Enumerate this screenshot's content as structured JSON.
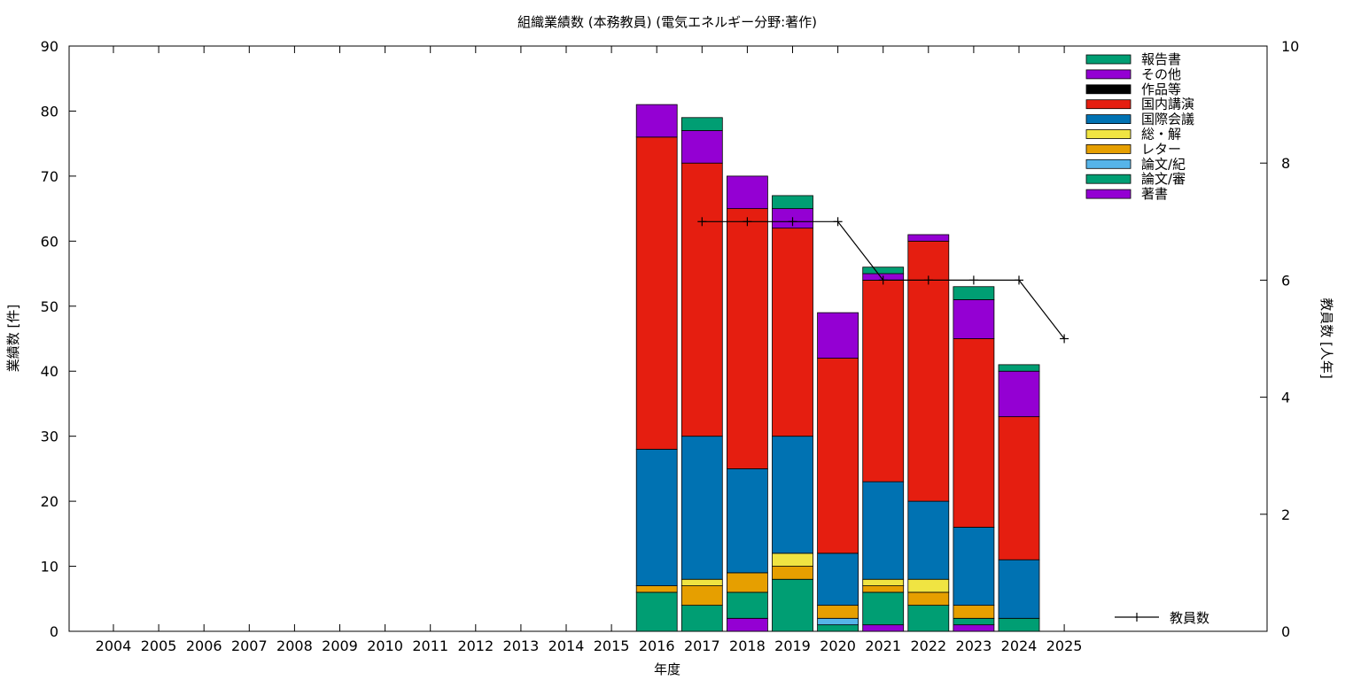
{
  "chart_data": {
    "type": "bar",
    "title": "組織業績数 (本務教員) (電気エネルギー分野:著作)",
    "xlabel": "年度",
    "ylabel": "業績数 [件]",
    "y2label": "教員数 [人年]",
    "ylim": [
      0,
      90
    ],
    "y2lim": [
      0,
      10
    ],
    "yticks": [
      0,
      10,
      20,
      30,
      40,
      50,
      60,
      70,
      80,
      90
    ],
    "y2ticks": [
      0,
      2,
      4,
      6,
      8,
      10
    ],
    "categories": [
      "2004",
      "2005",
      "2006",
      "2007",
      "2008",
      "2009",
      "2010",
      "2011",
      "2012",
      "2013",
      "2014",
      "2015",
      "2016",
      "2017",
      "2018",
      "2019",
      "2020",
      "2021",
      "2022",
      "2023",
      "2024",
      "2025"
    ],
    "stacked": true,
    "legend_position": "top-right",
    "series": [
      {
        "name": "著書",
        "color": "#9400d3",
        "values": [
          0,
          0,
          0,
          0,
          0,
          0,
          0,
          0,
          0,
          0,
          0,
          0,
          0,
          0,
          2,
          0,
          0,
          1,
          0,
          1,
          0,
          0
        ]
      },
      {
        "name": "論文/審",
        "color": "#009e73",
        "values": [
          0,
          0,
          0,
          0,
          0,
          0,
          0,
          0,
          0,
          0,
          0,
          0,
          6,
          4,
          4,
          8,
          1,
          5,
          4,
          1,
          2,
          0
        ]
      },
      {
        "name": "論文/紀",
        "color": "#56b4e9",
        "values": [
          0,
          0,
          0,
          0,
          0,
          0,
          0,
          0,
          0,
          0,
          0,
          0,
          0,
          0,
          0,
          0,
          1,
          0,
          0,
          0,
          0,
          0
        ]
      },
      {
        "name": "レター",
        "color": "#e69f00",
        "values": [
          0,
          0,
          0,
          0,
          0,
          0,
          0,
          0,
          0,
          0,
          0,
          0,
          1,
          3,
          3,
          2,
          2,
          1,
          2,
          2,
          0,
          0
        ]
      },
      {
        "name": "総・解",
        "color": "#f0e442",
        "values": [
          0,
          0,
          0,
          0,
          0,
          0,
          0,
          0,
          0,
          0,
          0,
          0,
          0,
          1,
          0,
          2,
          0,
          1,
          2,
          0,
          0,
          0
        ]
      },
      {
        "name": "国際会議",
        "color": "#0072b2",
        "values": [
          0,
          0,
          0,
          0,
          0,
          0,
          0,
          0,
          0,
          0,
          0,
          0,
          21,
          22,
          16,
          18,
          8,
          15,
          12,
          12,
          9,
          0
        ]
      },
      {
        "name": "国内講演",
        "color": "#e51e10",
        "values": [
          0,
          0,
          0,
          0,
          0,
          0,
          0,
          0,
          0,
          0,
          0,
          0,
          48,
          42,
          40,
          32,
          30,
          31,
          40,
          29,
          22,
          0
        ]
      },
      {
        "name": "作品等",
        "color": "#000000",
        "values": [
          0,
          0,
          0,
          0,
          0,
          0,
          0,
          0,
          0,
          0,
          0,
          0,
          0,
          0,
          0,
          0,
          0,
          0,
          0,
          0,
          0,
          0
        ]
      },
      {
        "name": "その他",
        "color": "#9400d3",
        "values": [
          0,
          0,
          0,
          0,
          0,
          0,
          0,
          0,
          0,
          0,
          0,
          0,
          5,
          5,
          5,
          3,
          7,
          1,
          1,
          6,
          7,
          0
        ]
      },
      {
        "name": "報告書",
        "color": "#009e73",
        "values": [
          0,
          0,
          0,
          0,
          0,
          0,
          0,
          0,
          0,
          0,
          0,
          0,
          0,
          2,
          0,
          2,
          0,
          1,
          0,
          2,
          1,
          0
        ]
      }
    ],
    "line_series": {
      "name": "教員数",
      "axis": "y2",
      "color": "#000000",
      "x": [
        "2017",
        "2018",
        "2019",
        "2020",
        "2021",
        "2022",
        "2023",
        "2024",
        "2025"
      ],
      "values": [
        7,
        7,
        7,
        7,
        6,
        6,
        6,
        6,
        5
      ]
    }
  }
}
